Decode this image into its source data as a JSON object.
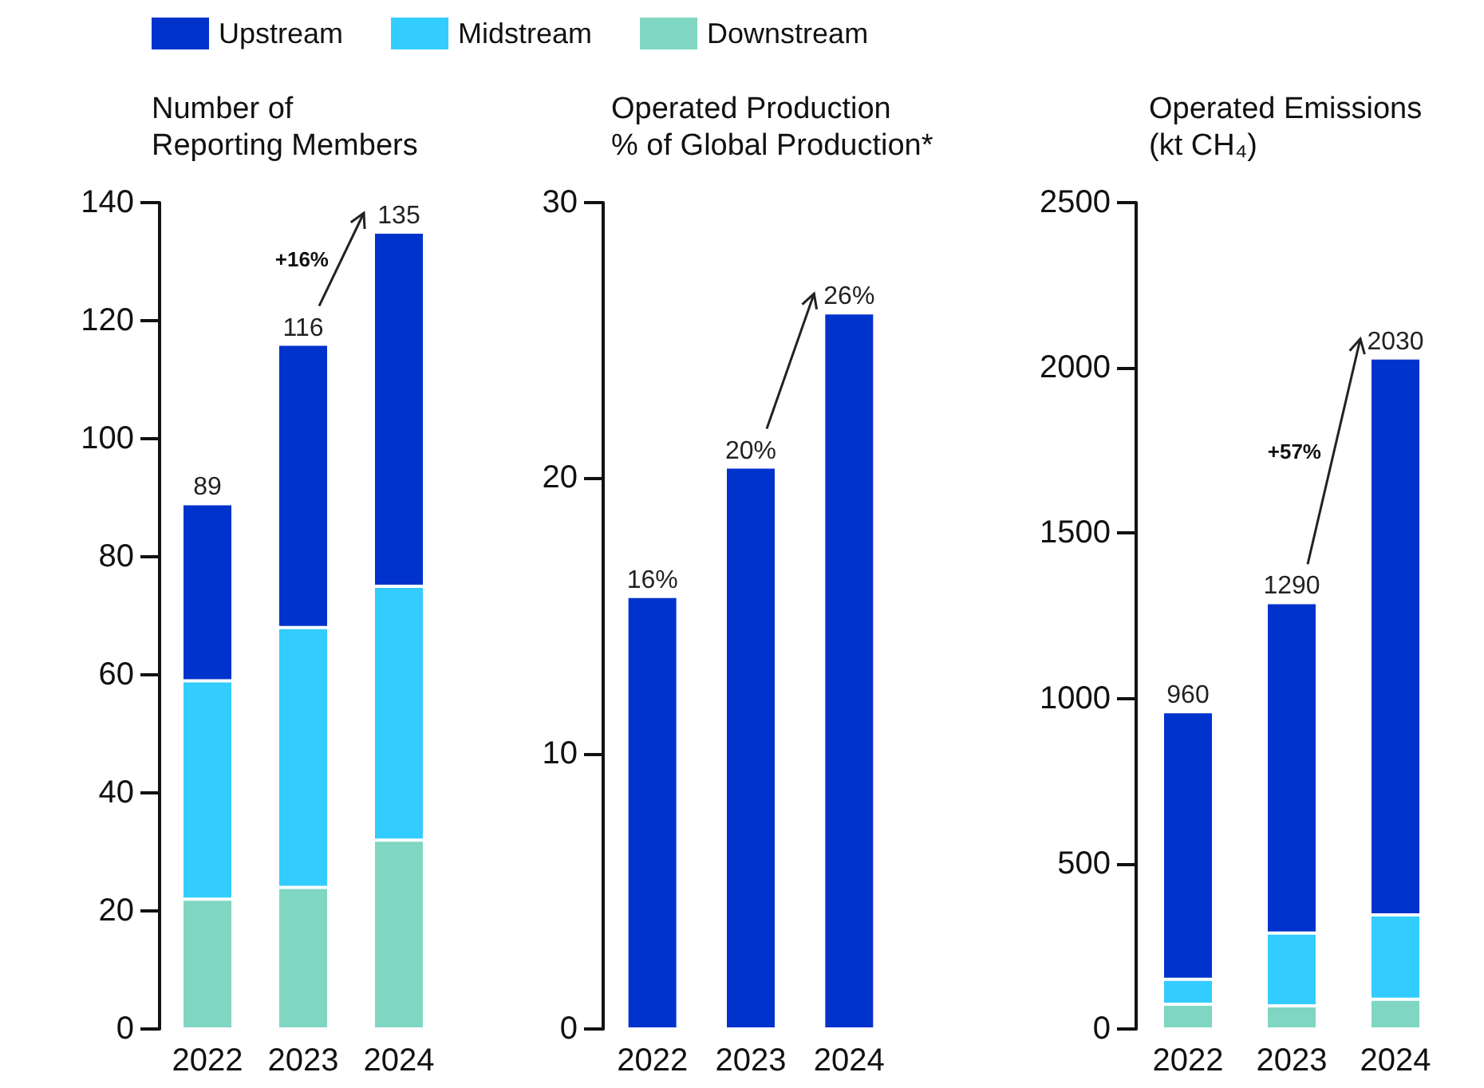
{
  "chart_data": [
    {
      "type": "bar",
      "title": "Number of\nReporting Members",
      "categories": [
        "2022",
        "2023",
        "2024"
      ],
      "stacked": true,
      "legend": "top",
      "ylim": [
        0,
        140
      ],
      "yticks": [
        0,
        20,
        40,
        60,
        80,
        100,
        120,
        140
      ],
      "totals": [
        "89",
        "116",
        "135"
      ],
      "annotations": [
        "+16%"
      ],
      "series": [
        {
          "name": "Downstream",
          "color": "#7fd6c2",
          "values": [
            22,
            24,
            32
          ]
        },
        {
          "name": "Midstream",
          "color": "#33ccff",
          "values": [
            37,
            44,
            43
          ]
        },
        {
          "name": "Upstream",
          "color": "#0033cc",
          "values": [
            30,
            48,
            60
          ]
        }
      ]
    },
    {
      "type": "bar",
      "title": "Operated Production\n% of Global Production*",
      "categories": [
        "2022",
        "2023",
        "2024"
      ],
      "ylim": [
        0,
        30
      ],
      "yticks": [
        0,
        10,
        20,
        30
      ],
      "series": [
        {
          "color": "#0033cc",
          "values": [
            15.7,
            20.4,
            26
          ],
          "value_labels": [
            "16%",
            "20%",
            "26%"
          ]
        }
      ]
    },
    {
      "type": "bar",
      "title": "Operated Emissions\n(kt CH₄)",
      "categories": [
        "2022",
        "2023",
        "2024"
      ],
      "stacked": true,
      "ylim": [
        0,
        2500
      ],
      "yticks": [
        0,
        500,
        1000,
        1500,
        2000,
        2500
      ],
      "totals": [
        "960",
        "1290",
        "2030"
      ],
      "annotations": [
        "+57%"
      ],
      "series": [
        {
          "color": "#7fd6c2",
          "values": [
            75,
            70,
            90
          ]
        },
        {
          "color": "#33ccff",
          "values": [
            75,
            220,
            255
          ]
        },
        {
          "color": "#0033cc",
          "values": [
            810,
            1000,
            1685
          ]
        }
      ]
    }
  ]
}
